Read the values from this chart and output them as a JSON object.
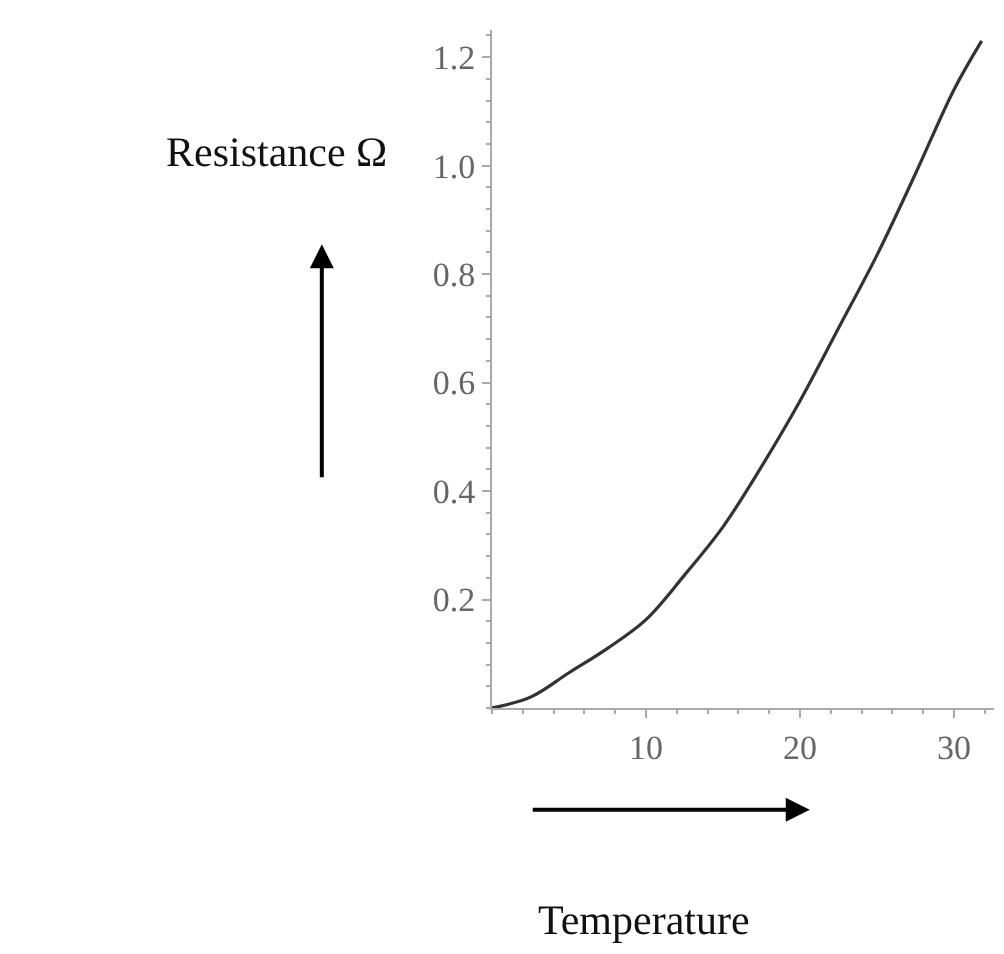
{
  "chart_data": {
    "type": "line",
    "xlabel": "Temperature",
    "ylabel": "Resistance Ω",
    "x": [
      0,
      2.5,
      5,
      7.5,
      10,
      12.5,
      15,
      17.5,
      20,
      22.5,
      25,
      27.5,
      30,
      31.8
    ],
    "series": [
      {
        "color": "#333333",
        "values": [
          0,
          0.02,
          0.065,
          0.11,
          0.163,
          0.245,
          0.334,
          0.445,
          0.566,
          0.7,
          0.835,
          0.985,
          1.14,
          1.23
        ]
      }
    ],
    "xlim": [
      0,
      32.6
    ],
    "ylim": [
      0,
      1.25
    ],
    "xticks": [
      10,
      20,
      30
    ],
    "yticks": [
      0.2,
      0.4,
      0.6,
      0.8,
      {
        "value": 1,
        "label": "1.0"
      },
      1.2
    ],
    "marker": "none",
    "line_style": "solid"
  }
}
